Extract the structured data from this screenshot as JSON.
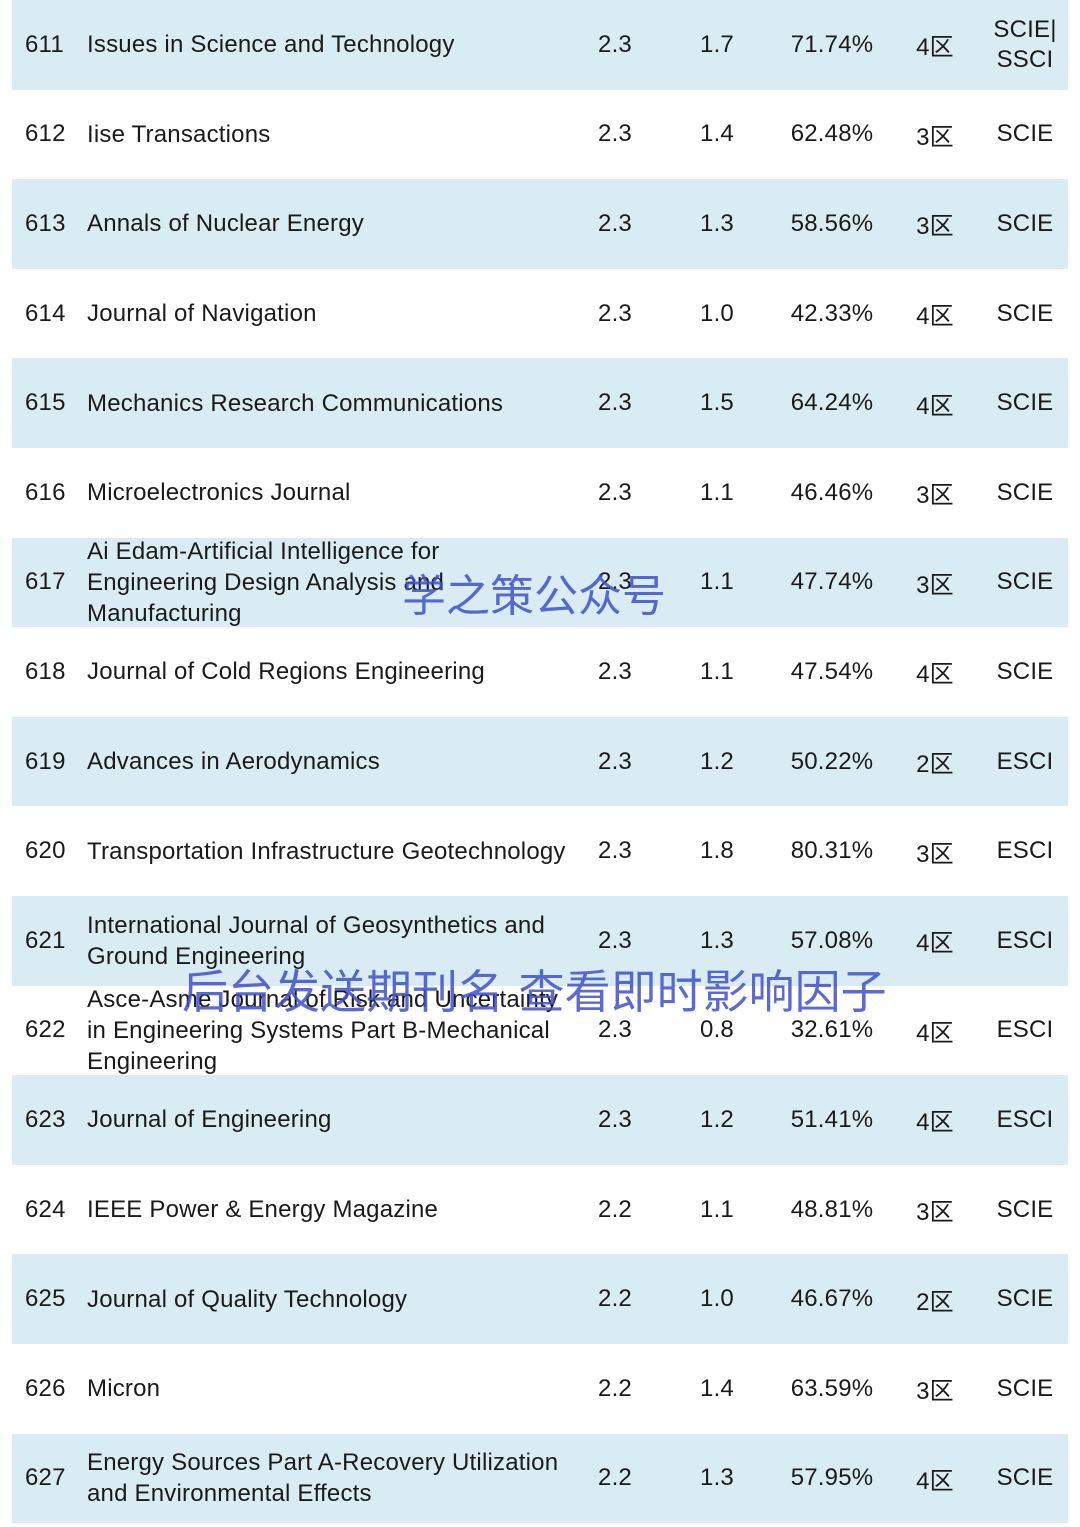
{
  "rows": [
    {
      "rank": "611",
      "title": "Issues in Science and Technology",
      "impact_factor": "2.3",
      "five_year": "1.7",
      "percentile": "71.74%",
      "zone": "4区",
      "index": "SCIE|\nSSCI"
    },
    {
      "rank": "612",
      "title": "Iise Transactions",
      "impact_factor": "2.3",
      "five_year": "1.4",
      "percentile": "62.48%",
      "zone": "3区",
      "index": "SCIE"
    },
    {
      "rank": "613",
      "title": "Annals of Nuclear Energy",
      "impact_factor": "2.3",
      "five_year": "1.3",
      "percentile": "58.56%",
      "zone": "3区",
      "index": "SCIE"
    },
    {
      "rank": "614",
      "title": "Journal of Navigation",
      "impact_factor": "2.3",
      "five_year": "1.0",
      "percentile": "42.33%",
      "zone": "4区",
      "index": "SCIE"
    },
    {
      "rank": "615",
      "title": "Mechanics Research Communications",
      "impact_factor": "2.3",
      "five_year": "1.5",
      "percentile": "64.24%",
      "zone": "4区",
      "index": "SCIE"
    },
    {
      "rank": "616",
      "title": "Microelectronics Journal",
      "impact_factor": "2.3",
      "five_year": "1.1",
      "percentile": "46.46%",
      "zone": "3区",
      "index": "SCIE"
    },
    {
      "rank": "617",
      "title": "Ai Edam-Artificial Intelligence for Engineering Design Analysis and Manufacturing",
      "impact_factor": "2.3",
      "five_year": "1.1",
      "percentile": "47.74%",
      "zone": "3区",
      "index": "SCIE"
    },
    {
      "rank": "618",
      "title": "Journal of Cold Regions Engineering",
      "impact_factor": "2.3",
      "five_year": "1.1",
      "percentile": "47.54%",
      "zone": "4区",
      "index": "SCIE"
    },
    {
      "rank": "619",
      "title": "Advances in Aerodynamics",
      "impact_factor": "2.3",
      "five_year": "1.2",
      "percentile": "50.22%",
      "zone": "2区",
      "index": "ESCI"
    },
    {
      "rank": "620",
      "title": "Transportation Infrastructure Geotechnology",
      "impact_factor": "2.3",
      "five_year": "1.8",
      "percentile": "80.31%",
      "zone": "3区",
      "index": "ESCI"
    },
    {
      "rank": "621",
      "title": "International Journal of Geosynthetics and Ground Engineering",
      "impact_factor": "2.3",
      "five_year": "1.3",
      "percentile": "57.08%",
      "zone": "4区",
      "index": "ESCI"
    },
    {
      "rank": "622",
      "title": "Asce-Asme Journal of Risk and Uncertainty in Engineering Systems Part B-Mechanical Engineering",
      "impact_factor": "2.3",
      "five_year": "0.8",
      "percentile": "32.61%",
      "zone": "4区",
      "index": "ESCI"
    },
    {
      "rank": "623",
      "title": "Journal of Engineering",
      "impact_factor": "2.3",
      "five_year": "1.2",
      "percentile": "51.41%",
      "zone": "4区",
      "index": "ESCI"
    },
    {
      "rank": "624",
      "title": "IEEE Power & Energy Magazine",
      "impact_factor": "2.2",
      "five_year": "1.1",
      "percentile": "48.81%",
      "zone": "3区",
      "index": "SCIE"
    },
    {
      "rank": "625",
      "title": "Journal of Quality Technology",
      "impact_factor": "2.2",
      "five_year": "1.0",
      "percentile": "46.67%",
      "zone": "2区",
      "index": "SCIE"
    },
    {
      "rank": "626",
      "title": "Micron",
      "impact_factor": "2.2",
      "five_year": "1.4",
      "percentile": "63.59%",
      "zone": "3区",
      "index": "SCIE"
    },
    {
      "rank": "627",
      "title": "Energy Sources Part A-Recovery Utilization and Environmental Effects",
      "impact_factor": "2.2",
      "five_year": "1.3",
      "percentile": "57.95%",
      "zone": "4区",
      "index": "SCIE"
    }
  ],
  "watermarks": {
    "top": "学之策公众号",
    "bottom": "后台发送期刊名 查看即时影响因子"
  },
  "colors": {
    "row_shade": "#daecf3",
    "watermark": "#3f51c8"
  }
}
